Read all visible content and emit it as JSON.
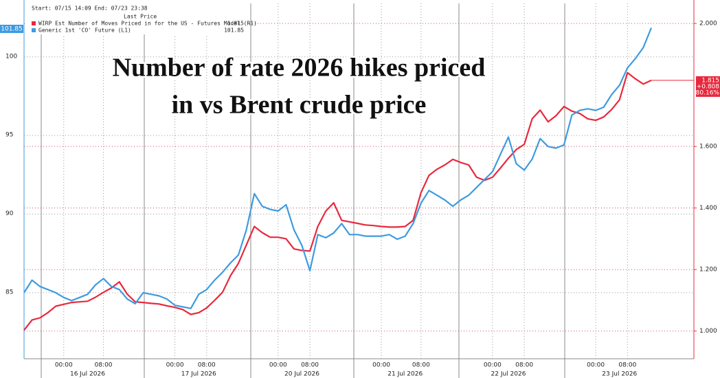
{
  "chart_data": {
    "type": "line",
    "title_lines": [
      "Number of rate 2026 hikes priced",
      "in vs Brent crude price"
    ],
    "legend_header": "Start: 07/15 14:09 End: 07/23 23:38",
    "legend_subheader": "Last Price",
    "annotations": [
      "+0.808",
      "80.16%"
    ],
    "categories": [
      null,
      null,
      null,
      null,
      null,
      "00:00",
      null,
      null,
      null,
      null,
      "08:00",
      null,
      null,
      null,
      null,
      null,
      null,
      null,
      null,
      "00:00",
      null,
      null,
      null,
      "08:00",
      null,
      null,
      null,
      null,
      null,
      null,
      null,
      null,
      "00:00",
      null,
      null,
      null,
      "08:00",
      null,
      null,
      null,
      null,
      null,
      null,
      null,
      null,
      "00:00",
      null,
      null,
      null,
      null,
      "08:00",
      null,
      null,
      null,
      null,
      null,
      null,
      null,
      null,
      "00:00",
      null,
      null,
      null,
      "08:00",
      null,
      null,
      null,
      null,
      null,
      null,
      null,
      null,
      "00:00",
      null,
      null,
      null,
      "08:00",
      null,
      null,
      null
    ],
    "date_categories": [
      null,
      null,
      null,
      null,
      null,
      null,
      null,
      null,
      "16 Jul 2026",
      null,
      null,
      null,
      null,
      null,
      null,
      null,
      null,
      null,
      null,
      null,
      null,
      null,
      "17 Jul 2026",
      null,
      null,
      null,
      null,
      null,
      null,
      null,
      null,
      null,
      null,
      null,
      null,
      "20 Jul 2026",
      null,
      null,
      null,
      null,
      null,
      null,
      null,
      null,
      null,
      null,
      null,
      null,
      "21 Jul 2026",
      null,
      null,
      null,
      null,
      null,
      null,
      null,
      null,
      null,
      null,
      null,
      null,
      "22 Jul 2026",
      null,
      null,
      null,
      null,
      null,
      null,
      null,
      null,
      null,
      null,
      null,
      null,
      null,
      "23 Jul 2026",
      null,
      null,
      null,
      null
    ],
    "series": [
      {
        "name": "WIRP Est Number of Moves Priced in for the US - Futures Model (R1)",
        "color": "#e8283c",
        "axis": "y2",
        "values": [
          1.003,
          1.036,
          1.043,
          1.06,
          1.081,
          1.087,
          1.093,
          1.095,
          1.097,
          1.11,
          1.126,
          1.14,
          1.16,
          1.12,
          1.095,
          1.093,
          1.09,
          1.088,
          1.082,
          1.077,
          1.07,
          1.054,
          1.06,
          1.075,
          1.1,
          1.126,
          1.18,
          1.22,
          1.28,
          1.34,
          1.32,
          1.305,
          1.305,
          1.3,
          1.267,
          1.262,
          1.26,
          1.34,
          1.39,
          1.417,
          1.36,
          1.355,
          1.35,
          1.345,
          1.343,
          1.34,
          1.338,
          1.338,
          1.34,
          1.36,
          1.45,
          1.506,
          1.526,
          1.54,
          1.558,
          1.548,
          1.54,
          1.5,
          1.49,
          1.5,
          1.53,
          1.562,
          1.59,
          1.607,
          1.69,
          1.718,
          1.68,
          1.7,
          1.73,
          1.715,
          1.707,
          1.69,
          1.685,
          1.696,
          1.72,
          1.752,
          1.84,
          1.82,
          1.803,
          1.815
        ]
      },
      {
        "name": "Generic 1st 'CO' Future (L1)",
        "color": "#3d9be0",
        "axis": "y",
        "values": [
          85.0,
          85.8,
          85.4,
          85.2,
          85.0,
          84.7,
          84.5,
          84.7,
          84.9,
          85.5,
          85.9,
          85.4,
          85.2,
          84.6,
          84.3,
          85.0,
          84.9,
          84.8,
          84.6,
          84.2,
          84.1,
          84.0,
          84.9,
          85.2,
          85.8,
          86.3,
          86.9,
          87.4,
          89.0,
          91.3,
          90.5,
          90.3,
          90.2,
          90.6,
          89.0,
          88.0,
          86.4,
          88.7,
          88.5,
          88.8,
          89.4,
          88.7,
          88.7,
          88.6,
          88.6,
          88.6,
          88.7,
          88.4,
          88.6,
          89.4,
          90.7,
          91.5,
          91.2,
          90.9,
          90.5,
          90.9,
          91.2,
          91.7,
          92.2,
          92.7,
          93.8,
          94.9,
          93.2,
          92.8,
          93.5,
          94.8,
          94.3,
          94.2,
          94.4,
          96.3,
          96.6,
          96.7,
          96.6,
          96.8,
          97.6,
          98.2,
          99.3,
          99.9,
          100.6,
          101.85
        ]
      }
    ],
    "ylim": [
      80.8,
      103.4
    ],
    "yticks": [
      85,
      90,
      95,
      100
    ],
    "y2lim": [
      0.91,
      2.065
    ],
    "y2ticks": [
      {
        "value": 1.0,
        "label": "1.000"
      },
      {
        "value": 1.2,
        "label": "1.200"
      },
      {
        "value": 1.4,
        "label": "1.400"
      },
      {
        "value": 1.6,
        "label": "1.600"
      },
      {
        "value": 2.0,
        "label": "2.000"
      }
    ],
    "grid": true
  }
}
